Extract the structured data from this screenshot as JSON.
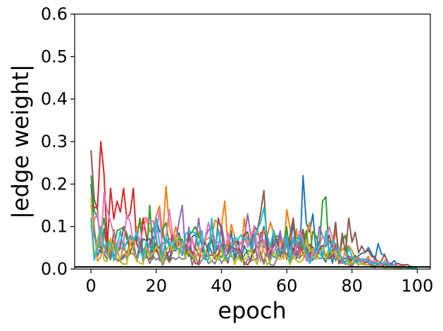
{
  "chart_data": {
    "type": "line",
    "title": "",
    "xlabel": "epoch",
    "ylabel": "|edge weight|",
    "xlim": [
      -5,
      104
    ],
    "ylim": [
      0,
      0.6
    ],
    "xticks": [
      0,
      20,
      40,
      60,
      80,
      100
    ],
    "yticks": [
      0.0,
      0.1,
      0.2,
      0.3,
      0.4,
      0.5,
      0.6
    ],
    "xtick_labels": [
      "0",
      "20",
      "40",
      "60",
      "80",
      "100"
    ],
    "ytick_labels": [
      "0.0",
      "0.1",
      "0.2",
      "0.3",
      "0.4",
      "0.5",
      "0.6"
    ],
    "grid": false,
    "legend": "none",
    "reference_line": {
      "y": 0.005,
      "color": "#000000"
    },
    "series": [
      {
        "color": "#1f77b4",
        "peaks": [
          [
            0,
            0.2
          ],
          [
            3,
            0.05
          ],
          [
            20,
            0.12
          ],
          [
            43,
            0.09
          ],
          [
            53,
            0.1
          ],
          [
            62,
            0.11
          ],
          [
            65,
            0.22
          ],
          [
            68,
            0.13
          ],
          [
            78,
            0.05
          ],
          [
            88,
            0.06
          ],
          [
            93,
            0.02
          ],
          [
            100,
            0.002
          ]
        ]
      },
      {
        "color": "#ff7f0e",
        "peaks": [
          [
            0,
            0.15
          ],
          [
            5,
            0.08
          ],
          [
            23,
            0.195
          ],
          [
            26,
            0.1
          ],
          [
            41,
            0.16
          ],
          [
            47,
            0.12
          ],
          [
            55,
            0.11
          ],
          [
            60,
            0.14
          ],
          [
            67,
            0.11
          ],
          [
            75,
            0.09
          ],
          [
            85,
            0.03
          ],
          [
            100,
            0.002
          ]
        ]
      },
      {
        "color": "#2ca02c",
        "peaks": [
          [
            0,
            0.22
          ],
          [
            4,
            0.12
          ],
          [
            15,
            0.12
          ],
          [
            18,
            0.15
          ],
          [
            32,
            0.1
          ],
          [
            44,
            0.06
          ],
          [
            60,
            0.1
          ],
          [
            71,
            0.16
          ],
          [
            72,
            0.17
          ],
          [
            78,
            0.08
          ],
          [
            85,
            0.025
          ],
          [
            100,
            0.001
          ]
        ]
      },
      {
        "color": "#d62728",
        "peaks": [
          [
            0,
            0.15
          ],
          [
            3,
            0.3
          ],
          [
            6,
            0.19
          ],
          [
            8,
            0.16
          ],
          [
            10,
            0.19
          ],
          [
            13,
            0.19
          ],
          [
            16,
            0.12
          ],
          [
            25,
            0.08
          ],
          [
            40,
            0.06
          ],
          [
            57,
            0.07
          ],
          [
            75,
            0.06
          ],
          [
            85,
            0.02
          ],
          [
            100,
            0.001
          ]
        ]
      },
      {
        "color": "#9467bd",
        "peaks": [
          [
            0,
            0.12
          ],
          [
            6,
            0.07
          ],
          [
            28,
            0.15
          ],
          [
            33,
            0.12
          ],
          [
            48,
            0.13
          ],
          [
            58,
            0.09
          ],
          [
            70,
            0.1
          ],
          [
            80,
            0.03
          ],
          [
            100,
            0.001
          ]
        ]
      },
      {
        "color": "#8c564b",
        "peaks": [
          [
            0,
            0.28
          ],
          [
            2,
            0.14
          ],
          [
            10,
            0.1
          ],
          [
            30,
            0.08
          ],
          [
            39,
            0.12
          ],
          [
            53,
            0.185
          ],
          [
            56,
            0.09
          ],
          [
            62,
            0.12
          ],
          [
            75,
            0.11
          ],
          [
            79,
            0.12
          ],
          [
            87,
            0.03
          ],
          [
            90,
            0.035
          ],
          [
            100,
            0.002
          ]
        ]
      },
      {
        "color": "#e377c2",
        "peaks": [
          [
            0,
            0.13
          ],
          [
            4,
            0.18
          ],
          [
            21,
            0.14
          ],
          [
            24,
            0.14
          ],
          [
            36,
            0.11
          ],
          [
            50,
            0.1
          ],
          [
            64,
            0.09
          ],
          [
            73,
            0.1
          ],
          [
            78,
            0.04
          ],
          [
            90,
            0.02
          ],
          [
            100,
            0.001
          ]
        ]
      },
      {
        "color": "#7f7f7f",
        "peaks": [
          [
            0,
            0.1
          ],
          [
            5,
            0.06
          ],
          [
            15,
            0.05
          ],
          [
            30,
            0.05
          ],
          [
            45,
            0.04
          ],
          [
            60,
            0.06
          ],
          [
            75,
            0.05
          ],
          [
            85,
            0.01
          ],
          [
            100,
            0.001
          ]
        ]
      },
      {
        "color": "#bcbd22",
        "peaks": [
          [
            0,
            0.17
          ],
          [
            3,
            0.1
          ],
          [
            12,
            0.06
          ],
          [
            26,
            0.08
          ],
          [
            40,
            0.05
          ],
          [
            52,
            0.06
          ],
          [
            66,
            0.07
          ],
          [
            77,
            0.05
          ],
          [
            85,
            0.01
          ],
          [
            100,
            0.001
          ]
        ]
      },
      {
        "color": "#17becf",
        "peaks": [
          [
            0,
            0.12
          ],
          [
            3,
            0.1
          ],
          [
            20,
            0.12
          ],
          [
            37,
            0.12
          ],
          [
            53,
            0.145
          ],
          [
            64,
            0.08
          ],
          [
            72,
            0.09
          ],
          [
            79,
            0.05
          ],
          [
            90,
            0.015
          ],
          [
            100,
            0.001
          ]
        ]
      }
    ]
  }
}
